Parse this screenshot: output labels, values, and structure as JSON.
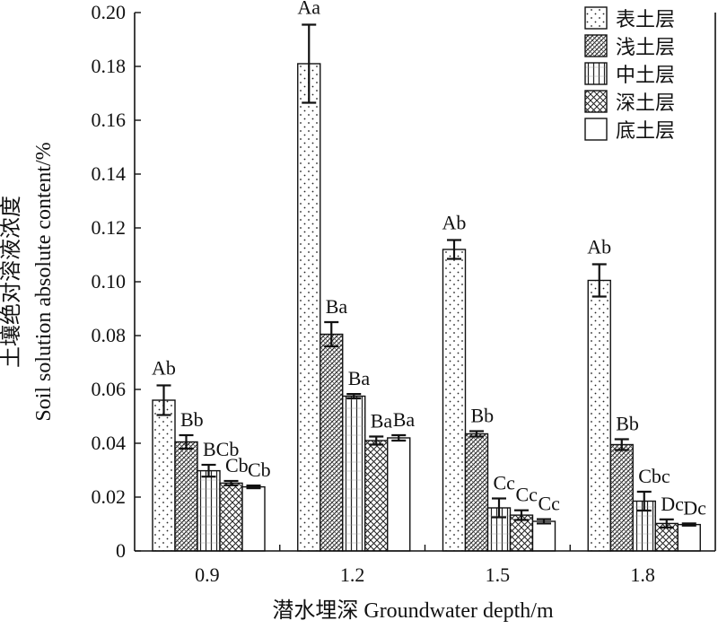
{
  "chart_data": {
    "type": "bar",
    "categories": [
      "0.9",
      "1.2",
      "1.5",
      "1.8"
    ],
    "xlabel": "潜水埋深 Groundwater depth/m",
    "ylabel_cn": "土壤绝对溶液浓度",
    "ylabel_en": "Soil solution absolute content/%",
    "ylim": [
      0,
      0.2
    ],
    "yticks": [
      "0",
      "0.02",
      "0.04",
      "0.06",
      "0.08",
      "0.10",
      "0.12",
      "0.14",
      "0.16",
      "0.18",
      "0.20"
    ],
    "legend_position": "top-right",
    "series": [
      {
        "name": "表土层",
        "pattern": "dots",
        "values": [
          0.056,
          0.181,
          0.112,
          0.1005
        ],
        "errors": [
          0.0055,
          0.0145,
          0.0035,
          0.006
        ],
        "labels": [
          "Ab",
          "Aa",
          "Ab",
          "Ab"
        ]
      },
      {
        "name": "浅土层",
        "pattern": "crosshatch",
        "values": [
          0.0405,
          0.0805,
          0.0435,
          0.0395
        ],
        "errors": [
          0.0025,
          0.0045,
          0.001,
          0.002
        ],
        "labels": [
          "Bb",
          "Ba",
          "Bb",
          "Bb"
        ]
      },
      {
        "name": "中土层",
        "pattern": "vlines",
        "values": [
          0.0298,
          0.0575,
          0.016,
          0.0185
        ],
        "errors": [
          0.0022,
          0.0008,
          0.0035,
          0.0035
        ],
        "labels": [
          "BCb",
          "Ba",
          "Cc",
          "Cbc"
        ]
      },
      {
        "name": "深土层",
        "pattern": "diamond",
        "values": [
          0.0252,
          0.041,
          0.0133,
          0.0102
        ],
        "errors": [
          0.0008,
          0.0015,
          0.0018,
          0.0015
        ],
        "labels": [
          "Cb",
          "Ba",
          "Cc",
          "Dc"
        ]
      },
      {
        "name": "底土层",
        "pattern": "blank",
        "values": [
          0.0238,
          0.042,
          0.011,
          0.0098
        ],
        "errors": [
          0.0005,
          0.001,
          0.0008,
          0.0004
        ],
        "labels": [
          "Cb",
          "Ba",
          "Cc",
          "Dc"
        ]
      }
    ]
  }
}
